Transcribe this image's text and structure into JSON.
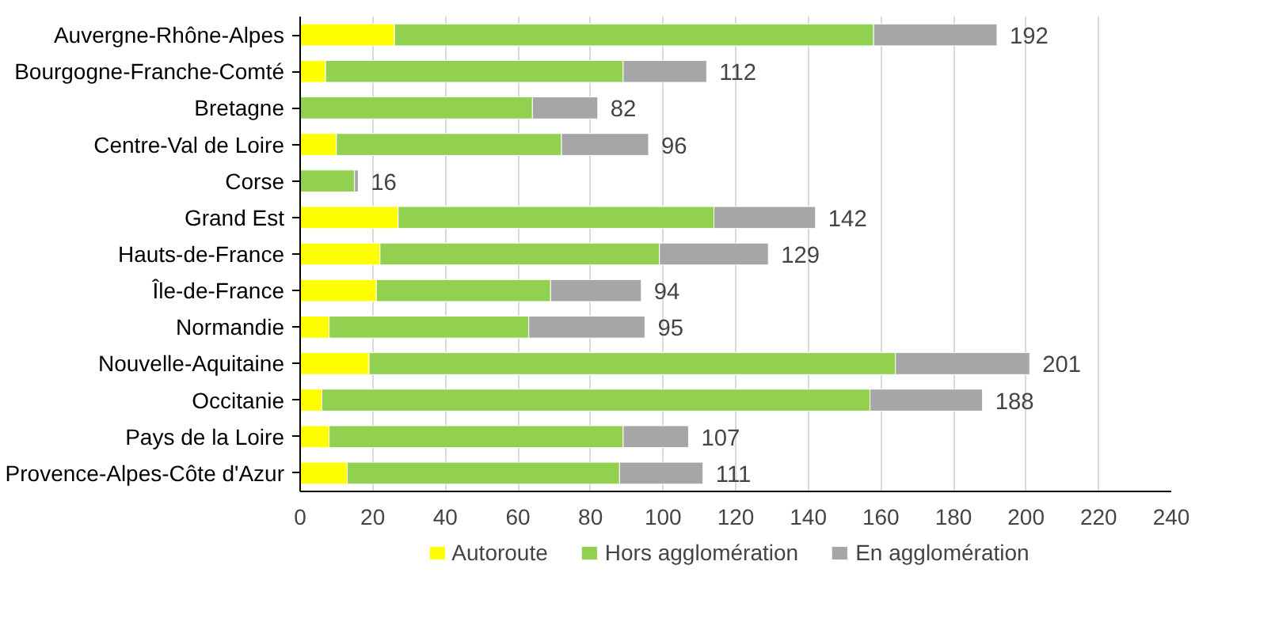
{
  "chart_data": {
    "type": "bar",
    "orientation": "horizontal",
    "stacked": true,
    "categories": [
      "Auvergne-Rhône-Alpes",
      "Bourgogne-Franche-Comté",
      "Bretagne",
      "Centre-Val de Loire",
      "Corse",
      "Grand Est",
      "Hauts-de-France",
      "Île-de-France",
      "Normandie",
      "Nouvelle-Aquitaine",
      "Occitanie",
      "Pays de la Loire",
      "Provence-Alpes-Côte d'Azur"
    ],
    "series": [
      {
        "name": "Autoroute",
        "color": "#ffff00",
        "values": [
          26,
          7,
          0,
          10,
          0,
          27,
          22,
          21,
          8,
          19,
          6,
          8,
          13
        ]
      },
      {
        "name": "Hors agglomération",
        "color": "#92d050",
        "values": [
          132,
          82,
          64,
          62,
          15,
          87,
          77,
          48,
          55,
          145,
          151,
          81,
          75
        ]
      },
      {
        "name": "En agglomération",
        "color": "#a6a6a6",
        "values": [
          34,
          23,
          18,
          24,
          1,
          28,
          30,
          25,
          32,
          37,
          31,
          18,
          23
        ]
      }
    ],
    "totals": [
      "192",
      "112",
      "82",
      "96",
      "16",
      "142",
      "129",
      "94",
      "95",
      "201",
      "188",
      "107",
      "111"
    ],
    "xlim": [
      0,
      240
    ],
    "xticks": [
      0,
      20,
      40,
      60,
      80,
      100,
      120,
      140,
      160,
      180,
      200,
      220,
      240
    ],
    "grid": "x",
    "legend": "bottom"
  }
}
